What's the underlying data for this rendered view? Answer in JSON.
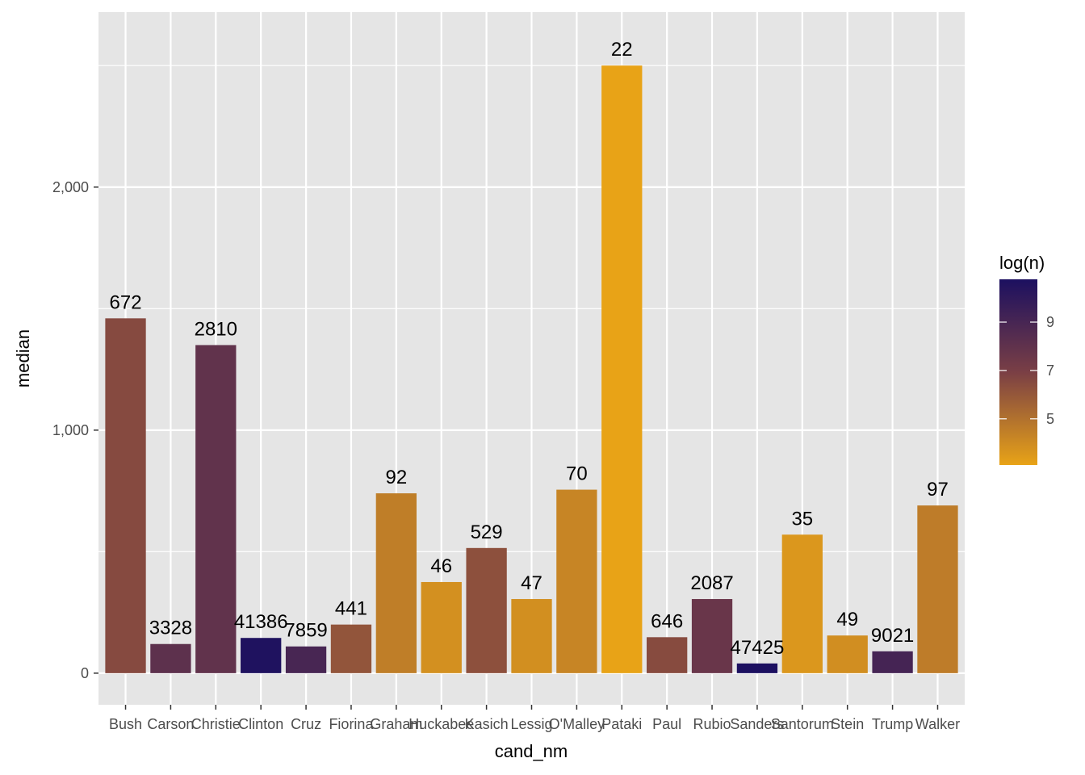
{
  "chart_data": {
    "type": "bar",
    "xlabel": "cand_nm",
    "ylabel": "median",
    "ylim": [
      -130,
      2720
    ],
    "y_ticks": [
      0,
      1000,
      2000
    ],
    "y_tick_labels": [
      "0",
      "1,000",
      "2,000"
    ],
    "grid": true,
    "legend_position": "right",
    "categories": [
      "Bush",
      "Carson",
      "Christie",
      "Clinton",
      "Cruz",
      "Fiorina",
      "Graham",
      "Huckabee",
      "Kasich",
      "Lessig",
      "O'Malley",
      "Pataki",
      "Paul",
      "Rubio",
      "Sanders",
      "Santorum",
      "Stein",
      "Trump",
      "Walker"
    ],
    "values": [
      1460,
      120,
      1350,
      145,
      110,
      200,
      740,
      375,
      515,
      305,
      755,
      2500,
      148,
      305,
      40,
      570,
      155,
      90,
      690
    ],
    "n_labels": [
      "672",
      "3328",
      "2810",
      "41386",
      "7859",
      "441",
      "92",
      "46",
      "529",
      "47",
      "70",
      "22",
      "646",
      "2087",
      "47425",
      "35",
      "49",
      "9021",
      "97"
    ],
    "fill_log_n": [
      6.51,
      8.11,
      7.94,
      10.63,
      8.97,
      6.09,
      4.52,
      3.83,
      6.27,
      3.85,
      4.25,
      3.09,
      6.47,
      7.64,
      10.77,
      3.56,
      3.89,
      9.11,
      4.57
    ],
    "legend": {
      "title": "log(n)",
      "ticks": [
        5,
        7,
        9
      ],
      "tick_labels": [
        "5",
        "7",
        "9"
      ],
      "range": [
        3.09,
        10.77
      ],
      "color_low": "#E8A317",
      "color_high": "#1C1060"
    }
  },
  "colors": {
    "panel_background": "#E5E5E5",
    "grid_line": "#FFFFFF",
    "tick_mark": "#333333"
  }
}
